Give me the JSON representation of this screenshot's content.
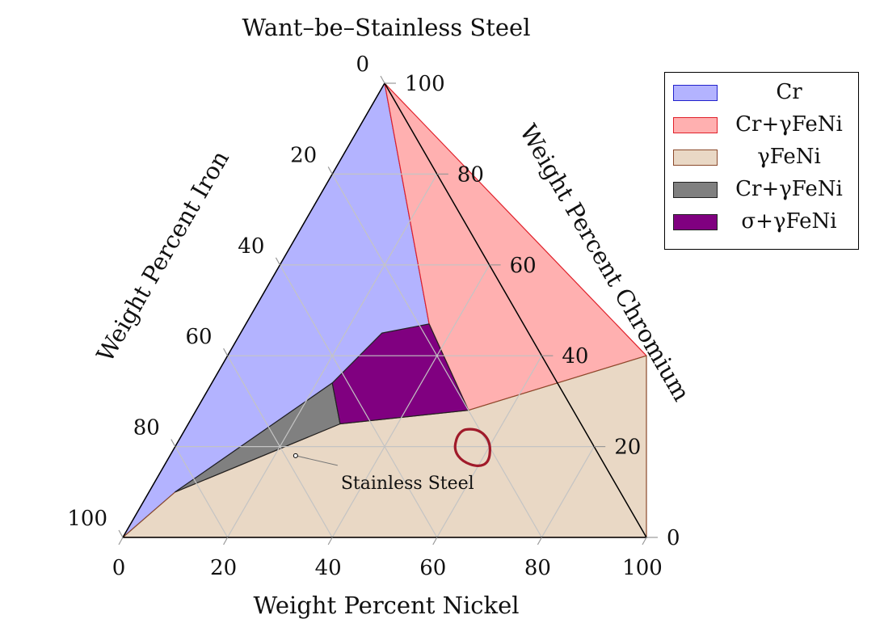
{
  "chart_data": {
    "type": "ternary",
    "title": "Want–be–Stainless Steel",
    "axes": {
      "bottom": {
        "label": "Weight Percent Nickel",
        "ticks": [
          0,
          20,
          40,
          60,
          80,
          100
        ]
      },
      "right": {
        "label": "Weight Percent Chromium",
        "ticks": [
          0,
          20,
          40,
          60,
          80,
          100
        ]
      },
      "left": {
        "label": "Weight Percent Iron",
        "ticks": [
          0,
          20,
          40,
          60,
          80,
          100
        ]
      }
    },
    "range": [
      0,
      100
    ],
    "grid": true,
    "grid_step": 20,
    "legend_position": "top-right",
    "regions": [
      {
        "name": "Cr",
        "fill": "#b3b3ff",
        "stroke": "#2222cc",
        "points": [
          [
            0,
            100
          ],
          [
            0,
            0
          ],
          [
            5,
            10
          ],
          [
            23,
            34
          ],
          [
            35,
            47
          ]
        ]
      },
      {
        "name": "Cr+γFeNi",
        "fill": "#ffb0b0",
        "stroke": "#e0202a",
        "points": [
          [
            0,
            100
          ],
          [
            35,
            47
          ],
          [
            52,
            28
          ],
          [
            80,
            40
          ]
        ]
      },
      {
        "name": "γFeNi",
        "fill": "#e9d8c5",
        "stroke": "#8b4a2c",
        "points": [
          [
            0,
            0
          ],
          [
            100,
            0
          ],
          [
            80,
            40
          ],
          [
            52,
            28
          ],
          [
            29,
            25
          ],
          [
            5,
            10
          ]
        ]
      },
      {
        "name": "Cr+γFeNi",
        "fill": "#808080",
        "stroke": "#222222",
        "points": [
          [
            5,
            10
          ],
          [
            29,
            25
          ],
          [
            23,
            34
          ]
        ]
      },
      {
        "name": "σ+γFeNi",
        "fill": "#800080",
        "stroke": "#222222",
        "points": [
          [
            35,
            47
          ],
          [
            52,
            28
          ],
          [
            29,
            25
          ],
          [
            23,
            34
          ],
          [
            27,
            45
          ]
        ]
      }
    ],
    "annotation": {
      "text": "Stainless Steel",
      "point": [
        24,
        18
      ]
    },
    "highlight_circle": {
      "color": "#a01a2a",
      "center": [
        57,
        20
      ]
    }
  },
  "legend": {
    "items": [
      {
        "label": "Cr",
        "fill": "#b3b3ff",
        "stroke": "#2222cc"
      },
      {
        "label": "Cr+γFeNi",
        "fill": "#ffb0b0",
        "stroke": "#e0202a"
      },
      {
        "label": "γFeNi",
        "fill": "#e9d8c5",
        "stroke": "#8b4a2c"
      },
      {
        "label": "Cr+γFeNi",
        "fill": "#808080",
        "stroke": "#222222"
      },
      {
        "label": "σ+γFeNi",
        "fill": "#800080",
        "stroke": "#222222"
      }
    ]
  }
}
